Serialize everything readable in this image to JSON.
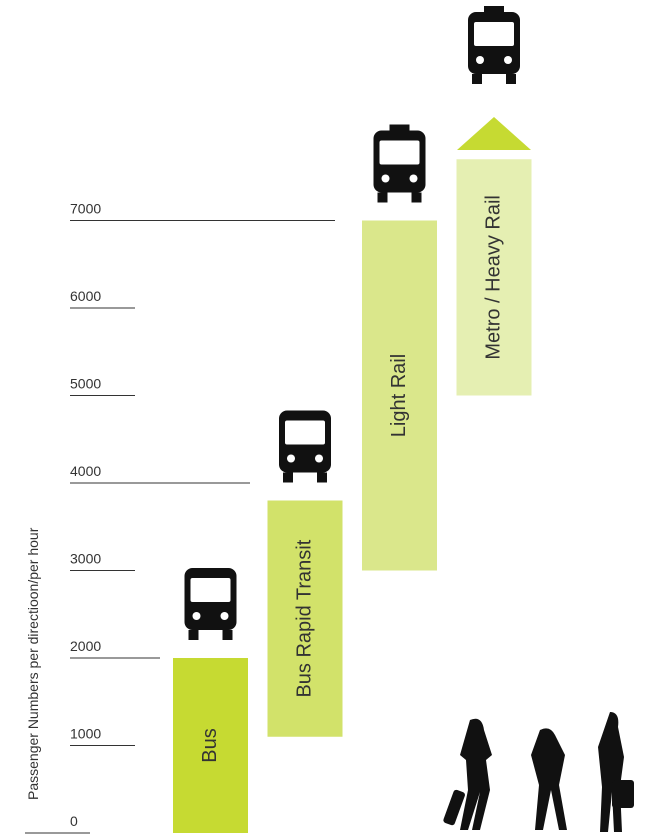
{
  "chart_data": {
    "type": "range_bar",
    "y_label": "Passenger Numbers per directioon/per hour",
    "categories": [
      "Bus",
      "Bus Rapid Transit",
      "Light Rail",
      "Metro / Heavy Rail"
    ],
    "ranges": [
      [
        0,
        2000
      ],
      [
        1100,
        3800
      ],
      [
        3000,
        7000
      ],
      [
        5000,
        7700
      ]
    ],
    "colors": [
      "#c6da32",
      "#d2e26a",
      "#dae78b",
      "#e5efb2"
    ],
    "ylim": [
      0,
      8000
    ],
    "yticks": [
      0,
      1000,
      2000,
      3000,
      4000,
      5000,
      6000,
      7000
    ]
  }
}
